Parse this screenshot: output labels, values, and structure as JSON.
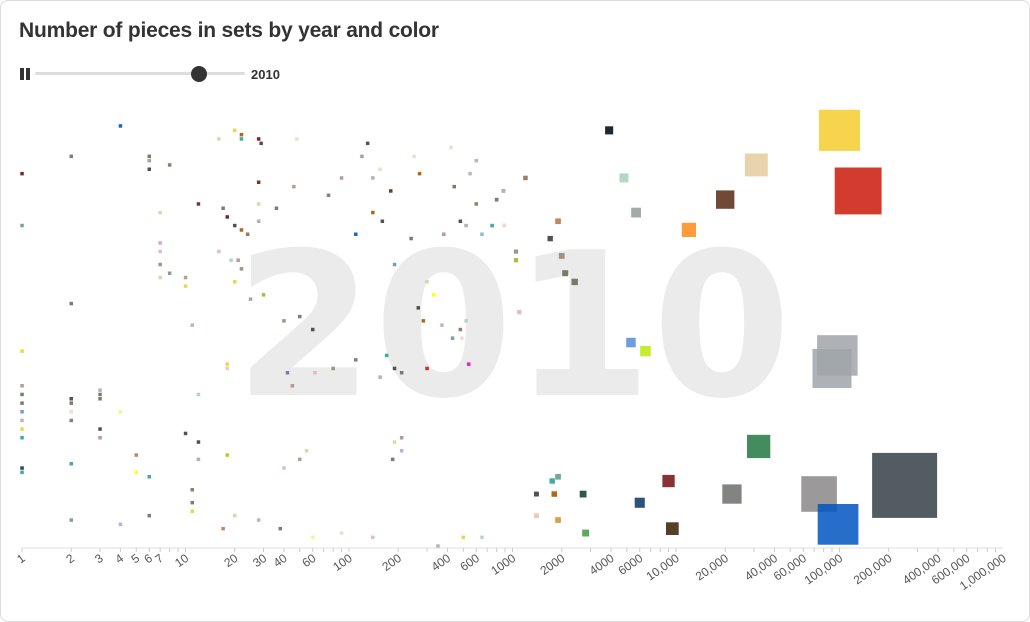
{
  "page": {
    "title": "Number of pieces in sets by year and color"
  },
  "player": {
    "year": "2010",
    "progress": 0.78,
    "pause_icon": "pause-icon"
  },
  "chart_data": {
    "type": "scatter",
    "title": "Number of pieces in sets by year and color",
    "year": 2010,
    "x_scale": "log",
    "xlim": [
      1,
      1000000
    ],
    "x_ticks": [
      {
        "v": 1,
        "label": "1"
      },
      {
        "v": 2,
        "label": "2"
      },
      {
        "v": 3,
        "label": "3"
      },
      {
        "v": 4,
        "label": "4"
      },
      {
        "v": 5,
        "label": "5"
      },
      {
        "v": 6,
        "label": "6"
      },
      {
        "v": 7,
        "label": "7"
      },
      {
        "v": 10,
        "label": "10"
      },
      {
        "v": 20,
        "label": "20"
      },
      {
        "v": 30,
        "label": "30"
      },
      {
        "v": 40,
        "label": "40"
      },
      {
        "v": 60,
        "label": "60"
      },
      {
        "v": 100,
        "label": "100"
      },
      {
        "v": 200,
        "label": "200"
      },
      {
        "v": 400,
        "label": "400"
      },
      {
        "v": 600,
        "label": "600"
      },
      {
        "v": 1000,
        "label": "1000"
      },
      {
        "v": 2000,
        "label": "2000"
      },
      {
        "v": 4000,
        "label": "4000"
      },
      {
        "v": 6000,
        "label": "6000"
      },
      {
        "v": 10000,
        "label": "10,000"
      },
      {
        "v": 20000,
        "label": "20,000"
      },
      {
        "v": 40000,
        "label": "40,000"
      },
      {
        "v": 60000,
        "label": "60,000"
      },
      {
        "v": 100000,
        "label": "100,000"
      },
      {
        "v": 200000,
        "label": "200,000"
      },
      {
        "v": 400000,
        "label": "400,000"
      },
      {
        "v": 600000,
        "label": "600,000"
      },
      {
        "v": 1000000,
        "label": "1,000,000"
      }
    ],
    "y_axis": "none (jittered vertical position)",
    "grid": false,
    "legend": "none",
    "points": [
      {
        "x": 250000,
        "j": 0.14,
        "color": "#353f47"
      },
      {
        "x": 100000,
        "j": 0.96,
        "color": "#f5cd2f"
      },
      {
        "x": 130000,
        "j": 0.82,
        "color": "#c91a09"
      },
      {
        "x": 90000,
        "j": 0.41,
        "color": "#a0a5a9"
      },
      {
        "x": 97000,
        "j": 0.44,
        "color": "#a0a5a9"
      },
      {
        "x": 75000,
        "j": 0.12,
        "color": "#898788"
      },
      {
        "x": 98000,
        "j": 0.05,
        "color": "#0055bf"
      },
      {
        "x": 32000,
        "j": 0.23,
        "color": "#237841"
      },
      {
        "x": 31000,
        "j": 0.88,
        "color": "#e4cd9e"
      },
      {
        "x": 20000,
        "j": 0.8,
        "color": "#582a12"
      },
      {
        "x": 12000,
        "j": 0.73,
        "color": "#fe8a18"
      },
      {
        "x": 6500,
        "j": 0.45,
        "color": "#bbe90b"
      },
      {
        "x": 5300,
        "j": 0.47,
        "color": "#5a93db"
      },
      {
        "x": 9000,
        "j": 0.15,
        "color": "#720e0f"
      },
      {
        "x": 6000,
        "j": 0.1,
        "color": "#0a3463"
      },
      {
        "x": 9500,
        "j": 0.04,
        "color": "#352100"
      },
      {
        "x": 22000,
        "j": 0.12,
        "color": "#6c6e68"
      },
      {
        "x": 5700,
        "j": 0.77,
        "color": "#9ba19d"
      },
      {
        "x": 4800,
        "j": 0.85,
        "color": "#aad4bb"
      },
      {
        "x": 3900,
        "j": 0.96,
        "color": "#05131d"
      },
      {
        "x": 2100,
        "j": 0.63,
        "color": "#6d6e5c"
      },
      {
        "x": 2400,
        "j": 0.61,
        "color": "#6d6e5c"
      },
      {
        "x": 2000,
        "j": 0.67,
        "color": "#958a73"
      },
      {
        "x": 1700,
        "j": 0.71,
        "color": "#3f3f3f"
      },
      {
        "x": 1900,
        "j": 0.75,
        "color": "#b67b50"
      },
      {
        "x": 2800,
        "j": 0.03,
        "color": "#4b9f4a"
      },
      {
        "x": 2700,
        "j": 0.12,
        "color": "#184632"
      },
      {
        "x": 1800,
        "j": 0.12,
        "color": "#a95500"
      },
      {
        "x": 1900,
        "j": 0.16,
        "color": "#6c9a88"
      },
      {
        "x": 1750,
        "j": 0.15,
        "color": "#2f9e9e"
      },
      {
        "x": 1400,
        "j": 0.12,
        "color": "#3f3f3f"
      },
      {
        "x": 1400,
        "j": 0.07,
        "color": "#e4c9b0"
      },
      {
        "x": 1900,
        "j": 0.06,
        "color": "#cc9933"
      },
      {
        "x": 1100,
        "j": 0.54,
        "color": "#e0b2c2"
      },
      {
        "x": 1050,
        "j": 0.68,
        "color": "#958a73"
      },
      {
        "x": 1050,
        "j": 0.66,
        "color": "#97b82b"
      },
      {
        "x": 1200,
        "j": 0.85,
        "color": "#8b6d5a"
      },
      {
        "x": 800,
        "j": 0.8,
        "color": "#6d6e5c"
      },
      {
        "x": 550,
        "j": 0.86,
        "color": "#c0a5c8"
      },
      {
        "x": 600,
        "j": 0.79,
        "color": "#8b6d5a"
      },
      {
        "x": 650,
        "j": 0.72,
        "color": "#7fb3d5"
      },
      {
        "x": 480,
        "j": 0.75,
        "color": "#3f3f3f"
      },
      {
        "x": 380,
        "j": 0.72,
        "color": "#b28f86"
      },
      {
        "x": 270,
        "j": 0.86,
        "color": "#a95500"
      },
      {
        "x": 250,
        "j": 0.9,
        "color": "#eadbc2"
      },
      {
        "x": 240,
        "j": 0.71,
        "color": "#6d6e5c"
      },
      {
        "x": 160,
        "j": 0.75,
        "color": "#3f3f3f"
      },
      {
        "x": 110,
        "j": 0.72,
        "color": "#0055bf"
      },
      {
        "x": 140,
        "j": 0.85,
        "color": "#aaa"
      },
      {
        "x": 180,
        "j": 0.82,
        "color": "#582a12"
      },
      {
        "x": 130,
        "j": 0.93,
        "color": "#3f3f3f"
      },
      {
        "x": 120,
        "j": 0.9,
        "color": "#b28f86"
      },
      {
        "x": 155,
        "j": 0.87,
        "color": "#eadbc2"
      },
      {
        "x": 90,
        "j": 0.85,
        "color": "#b28f86"
      },
      {
        "x": 75,
        "j": 0.81,
        "color": "#8b6d5a"
      },
      {
        "x": 140,
        "j": 0.77,
        "color": "#a95500"
      },
      {
        "x": 190,
        "j": 0.65,
        "color": "#5a93db"
      },
      {
        "x": 300,
        "j": 0.61,
        "color": "#e4cd9e"
      },
      {
        "x": 265,
        "j": 0.55,
        "color": "#3f3f3f"
      },
      {
        "x": 285,
        "j": 0.52,
        "color": "#a95500"
      },
      {
        "x": 330,
        "j": 0.58,
        "color": "#ff0"
      },
      {
        "x": 370,
        "j": 0.51,
        "color": "#c0a5c8"
      },
      {
        "x": 430,
        "j": 0.48,
        "color": "#6c9a88"
      },
      {
        "x": 480,
        "j": 0.5,
        "color": "#8b6d5a"
      },
      {
        "x": 520,
        "j": 0.52,
        "color": "#aad4bb"
      },
      {
        "x": 490,
        "j": 0.48,
        "color": "#eadbc2"
      },
      {
        "x": 540,
        "j": 0.42,
        "color": "#ff00c3"
      },
      {
        "x": 300,
        "j": 0.41,
        "color": "#c91a09"
      },
      {
        "x": 210,
        "j": 0.4,
        "color": "#6c6e68"
      },
      {
        "x": 170,
        "j": 0.44,
        "color": "#2f9e9e"
      },
      {
        "x": 190,
        "j": 0.41,
        "color": "#3f3f3f"
      },
      {
        "x": 155,
        "j": 0.39,
        "color": "#aaa"
      },
      {
        "x": 110,
        "j": 0.43,
        "color": "#8b6d5a"
      },
      {
        "x": 60,
        "j": 0.5,
        "color": "#3f3f3f"
      },
      {
        "x": 50,
        "j": 0.53,
        "color": "#6c6e68"
      },
      {
        "x": 40,
        "j": 0.52,
        "color": "#958a73"
      },
      {
        "x": 30,
        "j": 0.58,
        "color": "#97b82b"
      },
      {
        "x": 25,
        "j": 0.57,
        "color": "#9ba19d"
      },
      {
        "x": 18,
        "j": 0.41,
        "color": "#e4c9b0"
      },
      {
        "x": 18,
        "j": 0.42,
        "color": "#f2cd37"
      },
      {
        "x": 42,
        "j": 0.4,
        "color": "#7c6aa6"
      },
      {
        "x": 45,
        "j": 0.37,
        "color": "#b28f86"
      },
      {
        "x": 62,
        "j": 0.4,
        "color": "#e0b2c2"
      },
      {
        "x": 80,
        "j": 0.41,
        "color": "#958a73"
      },
      {
        "x": 11,
        "j": 0.51,
        "color": "#c0a5c8"
      },
      {
        "x": 12,
        "j": 0.35,
        "color": "#aad4bb"
      },
      {
        "x": 10,
        "j": 0.26,
        "color": "#3f3f3f"
      },
      {
        "x": 12,
        "j": 0.24,
        "color": "#3f3f3f"
      },
      {
        "x": 12,
        "j": 0.2,
        "color": "#aaa"
      },
      {
        "x": 18,
        "j": 0.21,
        "color": "#a5ca18"
      },
      {
        "x": 50,
        "j": 0.2,
        "color": "#b28f86"
      },
      {
        "x": 40,
        "j": 0.18,
        "color": "#e0b2c2"
      },
      {
        "x": 11,
        "j": 0.1,
        "color": "#6c6e68"
      },
      {
        "x": 11,
        "j": 0.13,
        "color": "#8b6d5a"
      },
      {
        "x": 11,
        "j": 0.08,
        "color": "#f2cd37"
      },
      {
        "x": 20,
        "j": 0.07,
        "color": "#e4cd9e"
      },
      {
        "x": 28,
        "j": 0.06,
        "color": "#c0a5c8"
      },
      {
        "x": 38,
        "j": 0.04,
        "color": "#6c6e68"
      },
      {
        "x": 17,
        "j": 0.04,
        "color": "#b67b50"
      },
      {
        "x": 60,
        "j": 0.02,
        "color": "#f8f184"
      },
      {
        "x": 90,
        "j": 0.03,
        "color": "#eadbc2"
      },
      {
        "x": 140,
        "j": 0.02,
        "color": "#e0b2c2"
      },
      {
        "x": 350,
        "j": 0.0,
        "color": "#aaa"
      },
      {
        "x": 500,
        "j": 0.02,
        "color": "#f2cd37"
      },
      {
        "x": 650,
        "j": 0.02,
        "color": "#aad4bb"
      },
      {
        "x": 190,
        "j": 0.24,
        "color": "#e4cd9e"
      },
      {
        "x": 210,
        "j": 0.25,
        "color": "#b28f86"
      },
      {
        "x": 185,
        "j": 0.2,
        "color": "#6c6e68"
      },
      {
        "x": 210,
        "j": 0.22,
        "color": "#c0a5c8"
      },
      {
        "x": 55,
        "j": 0.22,
        "color": "#e4cd9e"
      },
      {
        "x": 5,
        "j": 0.21,
        "color": "#b67b50"
      },
      {
        "x": 5,
        "j": 0.17,
        "color": "#ff0"
      },
      {
        "x": 6,
        "j": 0.16,
        "color": "#2f9e9e"
      },
      {
        "x": 6,
        "j": 0.07,
        "color": "#6d6e5c"
      },
      {
        "x": 4,
        "j": 0.05,
        "color": "#c0a5c8"
      },
      {
        "x": 4,
        "j": 0.31,
        "color": "#f8f184"
      },
      {
        "x": 3,
        "j": 0.36,
        "color": "#aaa"
      },
      {
        "x": 3,
        "j": 0.35,
        "color": "#6c6e68"
      },
      {
        "x": 3,
        "j": 0.34,
        "color": "#6d6e5c"
      },
      {
        "x": 3,
        "j": 0.27,
        "color": "#3f3f3f"
      },
      {
        "x": 3,
        "j": 0.25,
        "color": "#b28f86"
      },
      {
        "x": 2,
        "j": 0.34,
        "color": "#3f3f3f"
      },
      {
        "x": 2,
        "j": 0.33,
        "color": "#6d6e5c"
      },
      {
        "x": 2,
        "j": 0.31,
        "color": "#eadbc2"
      },
      {
        "x": 2,
        "j": 0.29,
        "color": "#8b6d5a"
      },
      {
        "x": 2,
        "j": 0.19,
        "color": "#2f9e9e"
      },
      {
        "x": 2,
        "j": 0.06,
        "color": "#6c9a88"
      },
      {
        "x": 2,
        "j": 0.56,
        "color": "#6d6e5c"
      },
      {
        "x": 2,
        "j": 0.9,
        "color": "#6c6e68"
      },
      {
        "x": 1,
        "j": 0.86,
        "color": "#720e0f"
      },
      {
        "x": 1,
        "j": 0.74,
        "color": "#6c9a88"
      },
      {
        "x": 1,
        "j": 0.45,
        "color": "#f2cd37"
      },
      {
        "x": 1,
        "j": 0.37,
        "color": "#b28f86"
      },
      {
        "x": 1,
        "j": 0.35,
        "color": "#6c6e68"
      },
      {
        "x": 1,
        "j": 0.33,
        "color": "#6d6e5c"
      },
      {
        "x": 1,
        "j": 0.31,
        "color": "#5a93db"
      },
      {
        "x": 1,
        "j": 0.29,
        "color": "#c0a5c8"
      },
      {
        "x": 1,
        "j": 0.27,
        "color": "#f2cd37"
      },
      {
        "x": 1,
        "j": 0.25,
        "color": "#2f9e9e"
      },
      {
        "x": 1,
        "j": 0.18,
        "color": "#0a3463"
      },
      {
        "x": 1,
        "j": 0.17,
        "color": "#2f9e9e"
      },
      {
        "x": 4,
        "j": 0.97,
        "color": "#0055bf"
      },
      {
        "x": 6,
        "j": 0.9,
        "color": "#6d6e5c"
      },
      {
        "x": 6,
        "j": 0.89,
        "color": "#b28f86"
      },
      {
        "x": 6,
        "j": 0.87,
        "color": "#3f3f3f"
      },
      {
        "x": 8,
        "j": 0.88,
        "color": "#8b6d5a"
      },
      {
        "x": 7,
        "j": 0.77,
        "color": "#e4cd9e"
      },
      {
        "x": 7,
        "j": 0.7,
        "color": "#c0a5c8"
      },
      {
        "x": 7,
        "j": 0.68,
        "color": "#e0b2c2"
      },
      {
        "x": 7,
        "j": 0.65,
        "color": "#958a73"
      },
      {
        "x": 7,
        "j": 0.62,
        "color": "#e4cd9e"
      },
      {
        "x": 8,
        "j": 0.63,
        "color": "#6c9a88"
      },
      {
        "x": 10,
        "j": 0.62,
        "color": "#b28f86"
      },
      {
        "x": 10,
        "j": 0.6,
        "color": "#f2cd37"
      },
      {
        "x": 12,
        "j": 0.79,
        "color": "#582a12"
      },
      {
        "x": 17,
        "j": 0.78,
        "color": "#6c6e68"
      },
      {
        "x": 18,
        "j": 0.76,
        "color": "#720e0f"
      },
      {
        "x": 20,
        "j": 0.74,
        "color": "#3f3f3f"
      },
      {
        "x": 22,
        "j": 0.73,
        "color": "#a95500"
      },
      {
        "x": 24,
        "j": 0.72,
        "color": "#8b6d5a"
      },
      {
        "x": 16,
        "j": 0.68,
        "color": "#e0b2c2"
      },
      {
        "x": 19,
        "j": 0.66,
        "color": "#aad4bb"
      },
      {
        "x": 21,
        "j": 0.66,
        "color": "#b28f86"
      },
      {
        "x": 22,
        "j": 0.64,
        "color": "#958a73"
      },
      {
        "x": 20,
        "j": 0.61,
        "color": "#f2cd37"
      },
      {
        "x": 16,
        "j": 0.94,
        "color": "#e4cd9e"
      },
      {
        "x": 20,
        "j": 0.96,
        "color": "#f2cd37"
      },
      {
        "x": 22,
        "j": 0.95,
        "color": "#a95500"
      },
      {
        "x": 22,
        "j": 0.94,
        "color": "#2f9e9e"
      },
      {
        "x": 28,
        "j": 0.94,
        "color": "#720e0f"
      },
      {
        "x": 29,
        "j": 0.93,
        "color": "#3f3f3f"
      },
      {
        "x": 48,
        "j": 0.94,
        "color": "#eadbc2"
      },
      {
        "x": 28,
        "j": 0.84,
        "color": "#582a12"
      },
      {
        "x": 28,
        "j": 0.79,
        "color": "#e4cd9e"
      },
      {
        "x": 36,
        "j": 0.78,
        "color": "#6c6e68"
      },
      {
        "x": 46,
        "j": 0.83,
        "color": "#b28f86"
      },
      {
        "x": 28,
        "j": 0.75,
        "color": "#aaa"
      },
      {
        "x": 440,
        "j": 0.83,
        "color": "#6d6e5c"
      },
      {
        "x": 880,
        "j": 0.82,
        "color": "#aaa"
      },
      {
        "x": 600,
        "j": 0.89,
        "color": "#c0a5c8"
      },
      {
        "x": 520,
        "j": 0.74,
        "color": "#aaa"
      },
      {
        "x": 750,
        "j": 0.74,
        "color": "#2f9e9e"
      },
      {
        "x": 890,
        "j": 0.74,
        "color": "#eadbc2"
      },
      {
        "x": 420,
        "j": 0.92,
        "color": "#eadbc2"
      }
    ]
  }
}
